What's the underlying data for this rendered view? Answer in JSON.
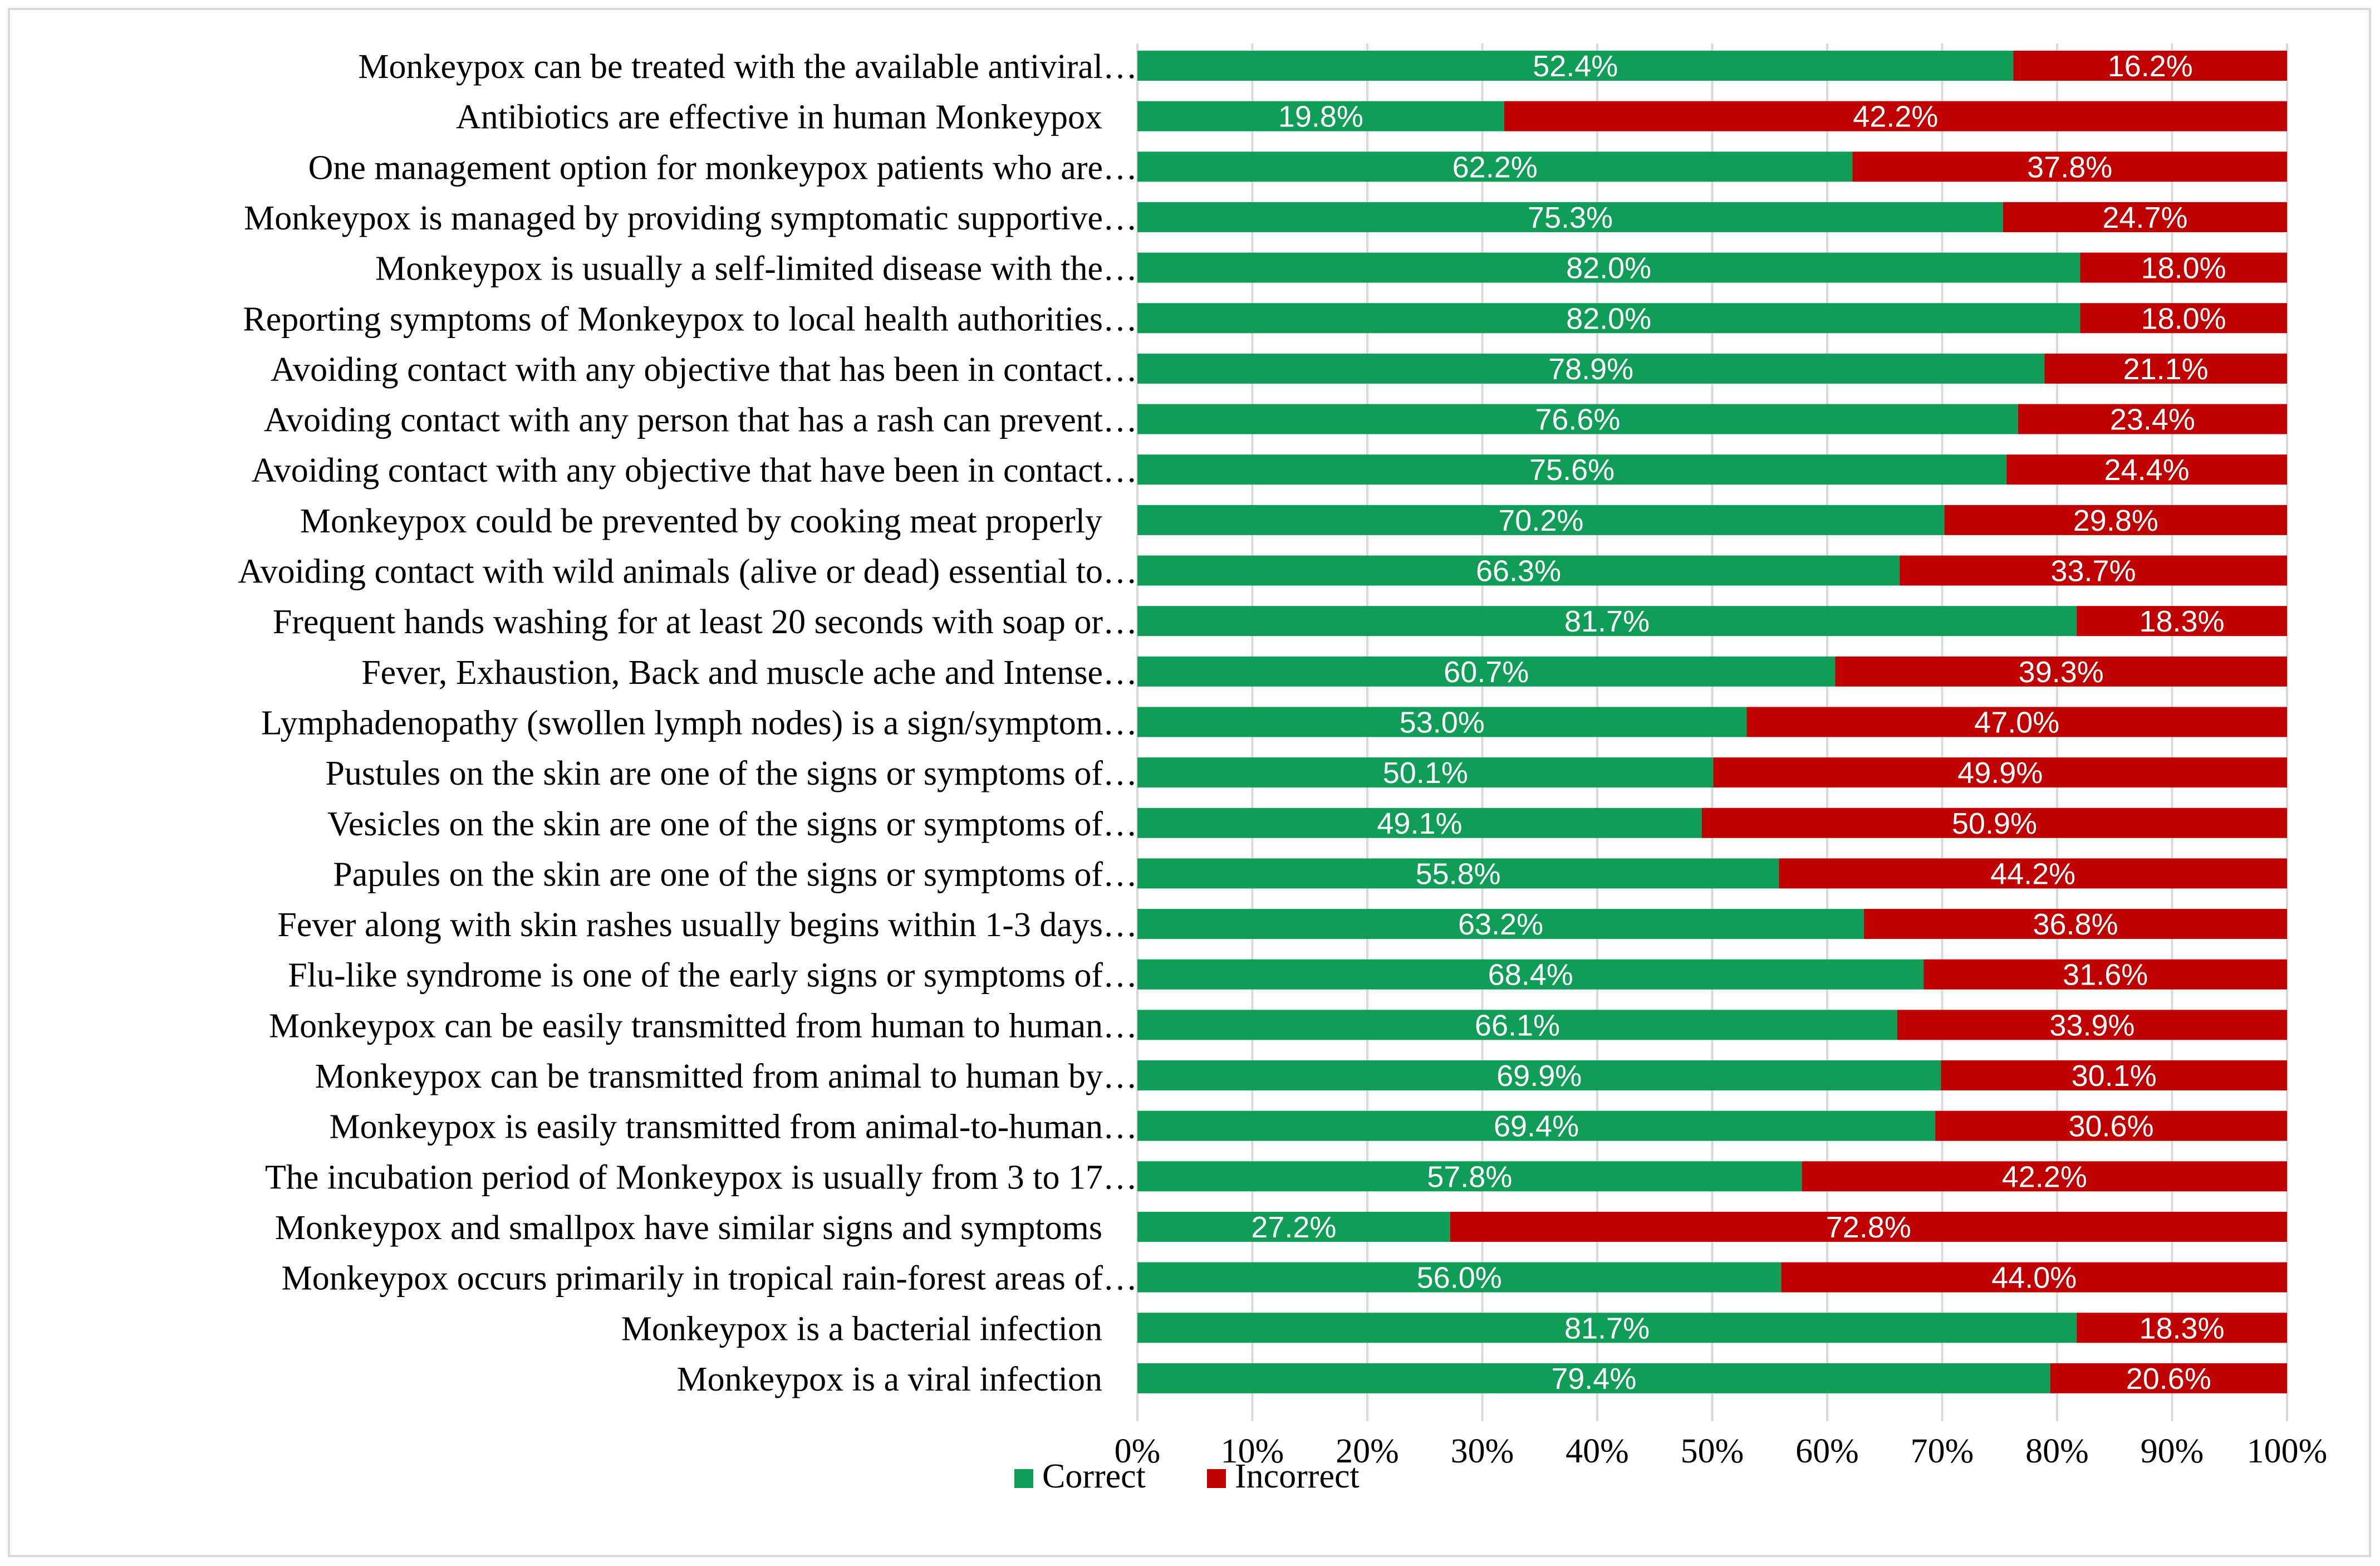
{
  "chart_data": {
    "type": "bar",
    "orientation": "horizontal",
    "stacked": true,
    "categories": [
      "Monkeypox can be treated with the available antiviral…",
      "Antibiotics are effective in human Monkeypox",
      "One management option for monkeypox patients who are…",
      "Monkeypox is managed by providing symptomatic supportive…",
      "Monkeypox is usually a self-limited disease with the…",
      "Reporting symptoms of Monkeypox to local health authorities…",
      "Avoiding contact with any objective that has been in contact…",
      "Avoiding contact with any person that has a rash can prevent…",
      "Avoiding contact with any objective that have been in contact…",
      "Monkeypox could be prevented by cooking meat properly",
      "Avoiding contact with wild animals (alive or dead) essential to…",
      "Frequent hands washing for at least 20 seconds with soap or…",
      "Fever, Exhaustion, Back and muscle ache and Intense…",
      "Lymphadenopathy (swollen lymph nodes) is a sign/symptom…",
      "Pustules on the skin are one of the signs or symptoms of…",
      "Vesicles on the skin are one of the signs or symptoms of…",
      "Papules on the skin are one of the signs or symptoms of…",
      "Fever along with skin rashes usually begins within 1-3 days…",
      "Flu-like syndrome is one of the early signs or symptoms of…",
      "Monkeypox can be easily transmitted from human to human…",
      "Monkeypox can be transmitted from animal to human by…",
      "Monkeypox is easily transmitted from animal-to-human…",
      "The incubation period of Monkeypox is usually from 3 to 17…",
      "Monkeypox and smallpox have similar signs and symptoms",
      "Monkeypox occurs primarily in tropical rain-forest areas of…",
      "Monkeypox is a bacterial infection",
      "Monkeypox is a viral infection"
    ],
    "series": [
      {
        "name": "Correct",
        "color": "#0f9d58",
        "values": [
          52.4,
          19.8,
          62.2,
          75.3,
          82.0,
          82.0,
          78.9,
          76.6,
          75.6,
          70.2,
          66.3,
          81.7,
          60.7,
          53.0,
          50.1,
          49.1,
          55.8,
          63.2,
          68.4,
          66.1,
          69.9,
          69.4,
          57.8,
          27.2,
          56.0,
          81.7,
          79.4
        ],
        "bar_extent": [
          76.2,
          31.9,
          62.2,
          75.3,
          82.0,
          82.0,
          78.9,
          76.6,
          75.6,
          70.2,
          66.3,
          81.7,
          60.7,
          53.0,
          50.1,
          49.1,
          55.8,
          63.2,
          68.4,
          66.1,
          69.9,
          69.4,
          57.8,
          27.2,
          56.0,
          81.7,
          79.4
        ]
      },
      {
        "name": "Incorrect",
        "color": "#c00000",
        "values": [
          16.2,
          42.2,
          37.8,
          24.7,
          18.0,
          18.0,
          21.1,
          23.4,
          24.4,
          29.8,
          33.7,
          18.3,
          39.3,
          47.0,
          49.9,
          50.9,
          44.2,
          36.8,
          31.6,
          33.9,
          30.1,
          30.6,
          42.2,
          72.8,
          44.0,
          18.3,
          20.6
        ]
      }
    ],
    "value_labels": {
      "Correct": [
        "52.4%",
        "19.8%",
        "62.2%",
        "75.3%",
        "82.0%",
        "82.0%",
        "78.9%",
        "76.6%",
        "75.6%",
        "70.2%",
        "66.3%",
        "81.7%",
        "60.7%",
        "53.0%",
        "50.1%",
        "49.1%",
        "55.8%",
        "63.2%",
        "68.4%",
        "66.1%",
        "69.9%",
        "69.4%",
        "57.8%",
        "27.2%",
        "56.0%",
        "81.7%",
        "79.4%"
      ],
      "Incorrect": [
        "16.2%",
        "42.2%",
        "37.8%",
        "24.7%",
        "18.0%",
        "18.0%",
        "21.1%",
        "23.4%",
        "24.4%",
        "29.8%",
        "33.7%",
        "18.3%",
        "39.3%",
        "47.0%",
        "49.9%",
        "50.9%",
        "44.2%",
        "36.8%",
        "31.6%",
        "33.9%",
        "30.1%",
        "30.6%",
        "42.2%",
        "72.8%",
        "44.0%",
        "18.3%",
        "20.6%"
      ]
    },
    "xlim": [
      0,
      100
    ],
    "xticks": [
      "0%",
      "10%",
      "20%",
      "30%",
      "40%",
      "50%",
      "60%",
      "70%",
      "80%",
      "90%",
      "100%"
    ],
    "grid": true,
    "legend": {
      "placement": "bottom",
      "entries": [
        {
          "label": "Correct",
          "color": "#0f9d58"
        },
        {
          "label": "Incorrect",
          "color": "#c00000"
        }
      ]
    },
    "title": "",
    "xlabel": "",
    "ylabel": ""
  }
}
